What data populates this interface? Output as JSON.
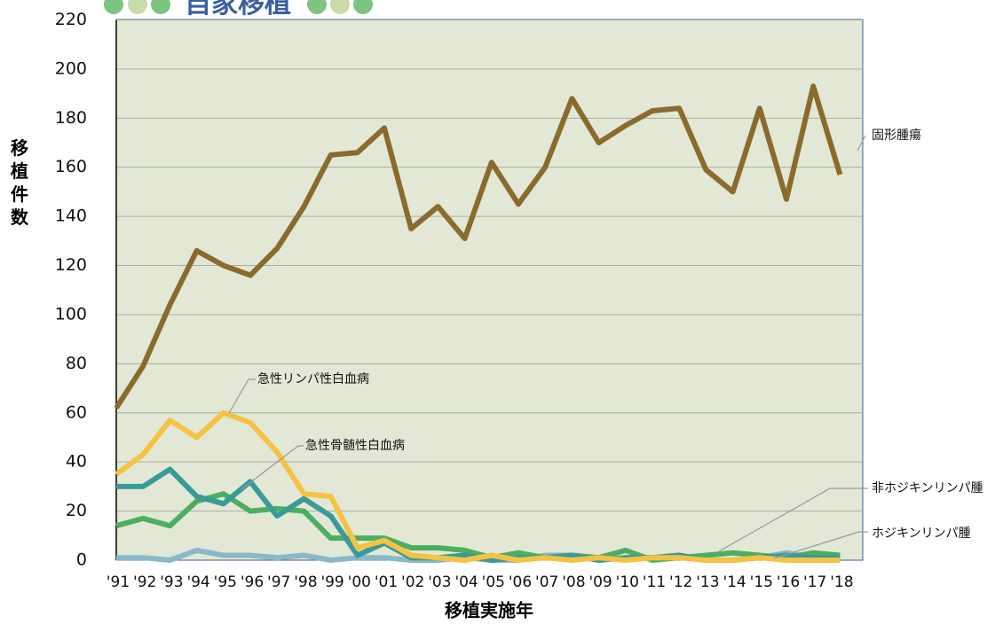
{
  "chart_data": {
    "type": "line",
    "title": "自家移植",
    "y_label": "移植件数",
    "x_label": "移植実施年",
    "categories": [
      "'91",
      "'92",
      "'93",
      "'94",
      "'95",
      "'96",
      "'97",
      "'98",
      "'99",
      "'00",
      "'01",
      "'02",
      "'03",
      "'04",
      "'05",
      "'06",
      "'07",
      "'08",
      "'09",
      "'10",
      "'11",
      "'12",
      "'13",
      "'14",
      "'15",
      "'16",
      "'17",
      "'18"
    ],
    "series": [
      {
        "name": "固形腫瘍",
        "color": "#8b6a2e",
        "values": [
          62,
          79,
          104,
          126,
          120,
          116,
          127,
          144,
          165,
          166,
          176,
          135,
          144,
          131,
          162,
          145,
          160,
          188,
          170,
          177,
          183,
          184,
          159,
          150,
          184,
          147,
          193,
          157
        ]
      },
      {
        "name": "急性リンパ性白血病",
        "color": "#f5c242",
        "values": [
          35,
          43,
          57,
          50,
          60,
          56,
          44,
          27,
          26,
          5,
          8,
          2,
          1,
          0,
          2,
          0,
          1,
          0,
          1,
          0,
          1,
          1,
          0,
          0,
          1,
          0,
          0,
          0
        ]
      },
      {
        "name": "急性骨髄性白血病",
        "color": "#3a9a9a",
        "values": [
          30,
          30,
          37,
          26,
          23,
          32,
          18,
          25,
          18,
          2,
          7,
          1,
          1,
          2,
          0,
          1,
          1,
          2,
          0,
          1,
          1,
          2,
          0,
          0,
          1,
          2,
          1,
          1
        ]
      },
      {
        "name": "非ホジキンリンパ腫",
        "color": "#4caf60",
        "values": [
          14,
          17,
          14,
          24,
          27,
          20,
          21,
          20,
          9,
          9,
          9,
          5,
          5,
          4,
          1,
          3,
          1,
          2,
          1,
          4,
          0,
          1,
          2,
          3,
          2,
          1,
          3,
          2
        ]
      },
      {
        "name": "ホジキンリンパ腫",
        "color": "#8bb8c8",
        "values": [
          1,
          1,
          0,
          4,
          2,
          2,
          1,
          2,
          0,
          1,
          1,
          0,
          0,
          1,
          0,
          0,
          2,
          2,
          0,
          1,
          1,
          2,
          0,
          0,
          1,
          3,
          1,
          1
        ]
      }
    ],
    "ylim": [
      0,
      220
    ],
    "yticks": [
      0,
      20,
      40,
      60,
      80,
      100,
      120,
      140,
      160,
      180,
      200,
      220
    ],
    "grid": true
  }
}
